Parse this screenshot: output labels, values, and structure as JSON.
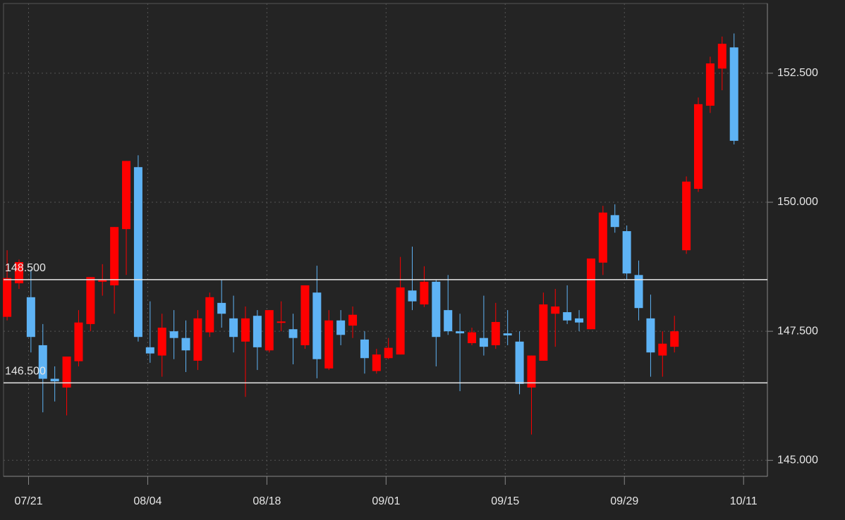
{
  "chart_data": {
    "type": "candlestick",
    "x": [
      0,
      1,
      2,
      3,
      4,
      5,
      6,
      7,
      8,
      9,
      10,
      11,
      12,
      13,
      14,
      15,
      16,
      17,
      18,
      19,
      20,
      21,
      22,
      23,
      24,
      25,
      26,
      27,
      28,
      29,
      30,
      31,
      32,
      33,
      34,
      35,
      36,
      37,
      38,
      39,
      40,
      41,
      42,
      43,
      44,
      45,
      46,
      47,
      48,
      49,
      50,
      51,
      52,
      53,
      54,
      55,
      56,
      57,
      58,
      59,
      60,
      61
    ],
    "open": [
      147.78,
      148.43,
      148.16,
      147.23,
      146.58,
      146.41,
      146.92,
      147.64,
      148.46,
      148.39,
      149.48,
      150.68,
      147.19,
      147.03,
      147.5,
      147.37,
      146.93,
      147.48,
      148.05,
      147.75,
      147.3,
      147.8,
      147.13,
      147.67,
      147.54,
      147.23,
      148.25,
      146.78,
      147.71,
      147.61,
      147.34,
      146.73,
      146.98,
      147.05,
      148.29,
      148.02,
      148.46,
      147.91,
      147.5,
      147.27,
      147.37,
      147.23,
      147.46,
      147.3,
      146.41,
      146.93,
      147.84,
      147.87,
      147.75,
      147.54,
      148.83,
      149.75,
      149.44,
      148.59,
      147.75,
      147.03,
      147.2,
      149.07,
      150.26,
      151.87,
      152.59,
      153.0
    ],
    "high": [
      149.07,
      148.89,
      148.7,
      147.64,
      146.82,
      147.01,
      147.91,
      148.55,
      148.8,
      149.52,
      150.8,
      150.91,
      148.08,
      147.84,
      147.91,
      147.71,
      147.91,
      148.25,
      148.49,
      148.19,
      147.98,
      147.91,
      147.91,
      148.08,
      147.84,
      148.39,
      148.77,
      147.91,
      147.91,
      147.98,
      147.5,
      147.16,
      147.37,
      148.94,
      149.14,
      148.76,
      148.49,
      148.59,
      147.84,
      147.57,
      148.19,
      148.05,
      147.91,
      147.5,
      147.03,
      148.25,
      148.32,
      148.39,
      147.91,
      148.91,
      149.93,
      149.96,
      149.55,
      148.87,
      148.21,
      147.5,
      147.8,
      150.5,
      152.03,
      152.82,
      153.21,
      153.27
    ],
    "low": [
      147.71,
      148.32,
      147.09,
      145.93,
      146.14,
      145.87,
      146.82,
      147.5,
      148.19,
      147.84,
      148.59,
      147.3,
      146.89,
      146.62,
      146.96,
      146.71,
      146.75,
      147.39,
      147.57,
      147.09,
      146.23,
      146.75,
      147.09,
      147.5,
      146.86,
      147.16,
      146.59,
      146.75,
      147.23,
      147.37,
      146.68,
      146.68,
      146.96,
      147.05,
      147.91,
      147.97,
      146.82,
      147.43,
      146.34,
      147.23,
      147.03,
      147.16,
      147.23,
      146.28,
      145.5,
      146.93,
      147.2,
      147.64,
      147.5,
      147.54,
      148.59,
      149.41,
      148.5,
      147.71,
      146.62,
      146.62,
      147.09,
      149.0,
      150.2,
      151.73,
      152.17,
      151.12
    ],
    "close": [
      148.53,
      148.84,
      147.39,
      146.58,
      146.53,
      147.01,
      147.67,
      148.55,
      148.49,
      149.52,
      150.8,
      147.39,
      147.07,
      147.57,
      147.37,
      147.13,
      147.75,
      148.16,
      147.84,
      147.39,
      147.75,
      147.19,
      147.91,
      147.69,
      147.37,
      148.39,
      146.96,
      147.71,
      147.43,
      147.82,
      146.98,
      147.05,
      147.18,
      148.35,
      148.08,
      148.46,
      147.39,
      147.5,
      147.46,
      147.48,
      147.2,
      147.68,
      147.42,
      146.48,
      147.03,
      148.02,
      147.98,
      147.71,
      147.67,
      148.91,
      149.8,
      149.52,
      148.62,
      147.95,
      147.09,
      147.26,
      147.5,
      150.4,
      151.9,
      152.69,
      153.07,
      151.19
    ],
    "up_color": "#ff0000",
    "down_color": "#5eb3f5",
    "xlim": [
      -0.3,
      63.8
    ],
    "xticks": [
      {
        "value": 1.8,
        "label": "07/21"
      },
      {
        "value": 11.8,
        "label": "08/04"
      },
      {
        "value": 21.8,
        "label": "08/18"
      },
      {
        "value": 31.8,
        "label": "09/01"
      },
      {
        "value": 41.8,
        "label": "09/15"
      },
      {
        "value": 51.8,
        "label": "09/29"
      },
      {
        "value": 61.8,
        "label": "10/11"
      }
    ],
    "ylim": [
      144.69,
      153.85
    ],
    "yticks": [
      {
        "value": 145,
        "label": "145.000"
      },
      {
        "value": 147.5,
        "label": "147.500"
      },
      {
        "value": 150,
        "label": "150.000"
      },
      {
        "value": 152.5,
        "label": "152.500"
      }
    ],
    "hlines": [
      {
        "value": 148.5,
        "label": "148.500"
      },
      {
        "value": 146.5,
        "label": "146.500"
      }
    ],
    "grid": true
  }
}
